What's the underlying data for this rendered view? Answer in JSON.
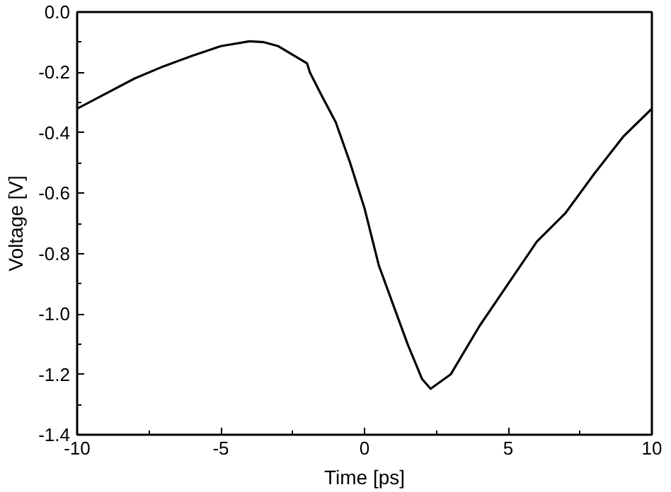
{
  "chart_data": {
    "type": "line",
    "xlabel": "Time [ps]",
    "ylabel": "Voltage [V]",
    "x": [
      -10,
      -9,
      -8,
      -7,
      -6,
      -5,
      -4,
      -3.5,
      -3,
      -2,
      -1.9,
      -1.5,
      -1,
      -0.5,
      0,
      0.5,
      1,
      1.5,
      2,
      2.3,
      3,
      4,
      5,
      6,
      7,
      8,
      9,
      10
    ],
    "series": [
      {
        "color": "#000000",
        "values": [
          -0.32,
          -0.27,
          -0.22,
          -0.18,
          -0.145,
          -0.113,
          -0.097,
          -0.1,
          -0.113,
          -0.17,
          -0.2,
          -0.275,
          -0.365,
          -0.5,
          -0.65,
          -0.84,
          -0.97,
          -1.1,
          -1.215,
          -1.248,
          -1.2,
          -1.04,
          -0.9,
          -0.76,
          -0.665,
          -0.535,
          -0.413,
          -0.32
        ]
      }
    ],
    "xlim": [
      -10,
      10
    ],
    "ylim": [
      -1.4,
      0.0
    ],
    "xticks": [
      -10,
      -5,
      0,
      5,
      10
    ],
    "yticks": [
      {
        "value": 0,
        "label": "0.0"
      },
      -0.2,
      -0.4,
      -0.6,
      -0.8,
      {
        "value": -1,
        "label": "-1.0"
      },
      -1.2,
      -1.4
    ],
    "grid": false,
    "marker": "none",
    "line_style": "solid"
  }
}
